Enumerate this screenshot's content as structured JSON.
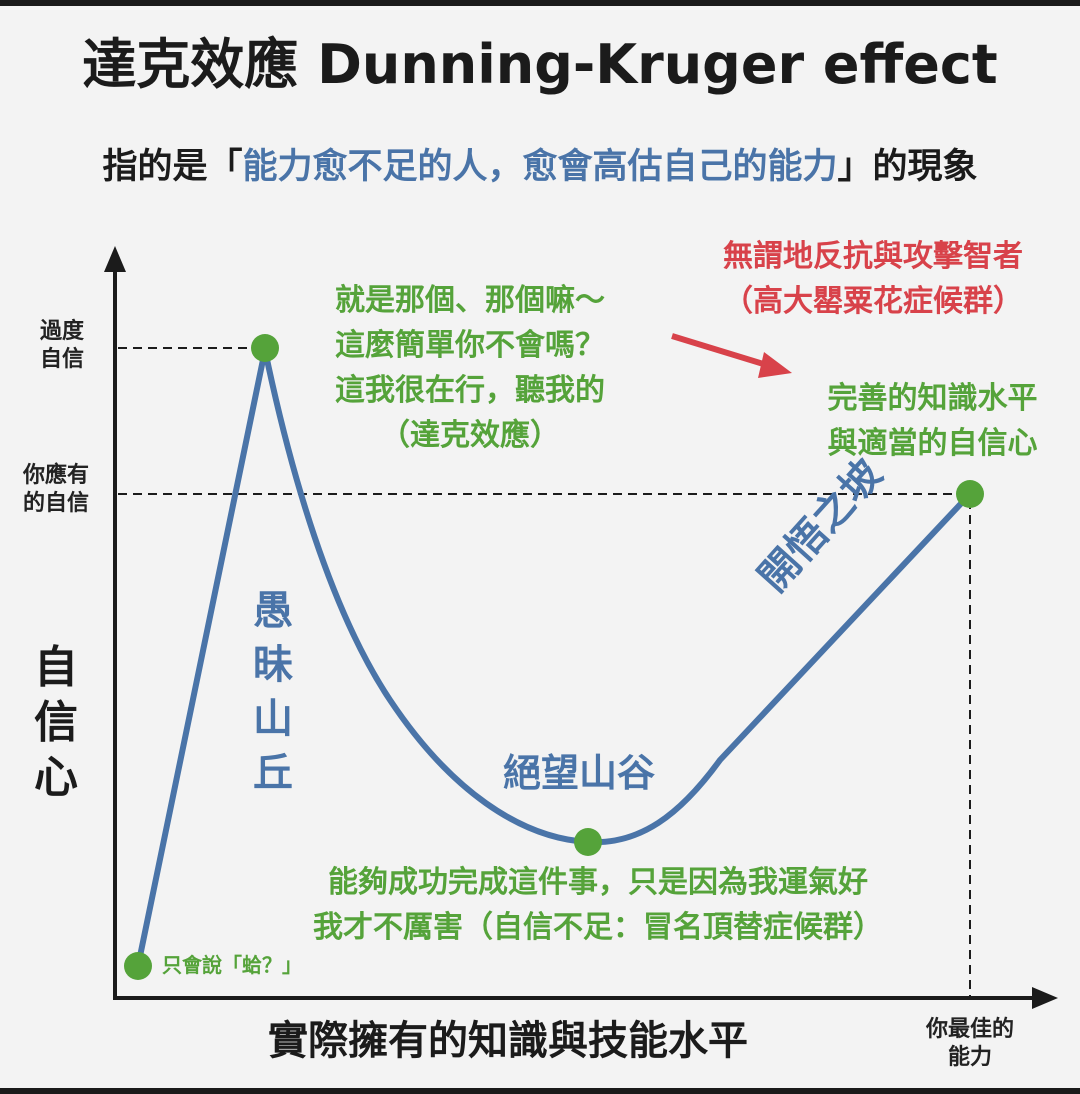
{
  "header": {
    "title": "達克效應 Dunning-Kruger effect",
    "subtitle_prefix": "指的是「",
    "subtitle_highlight": "能力愈不足的人，愈會高估自己的能力",
    "subtitle_suffix": "」的現象"
  },
  "axes": {
    "y_axis_label": "自信心",
    "x_axis_label": "實際擁有的知識與技能水平",
    "y_tick_overconfidence": "過度自信",
    "y_tick_appropriate": "你應有的自信",
    "x_tick_best_ability": "你最佳的能力"
  },
  "regions": {
    "peak_name": "愚昧山丘",
    "valley_name": "絕望山谷",
    "slope_name": "開悟之坡"
  },
  "annotations": {
    "start_point": "只會說「蛤？」",
    "peak_quote": [
      "就是那個、那個嘛～",
      "這麼簡單你不會嗎？",
      "這我很在行，聽我的",
      "（達克效應）"
    ],
    "valley_quote": [
      "能夠成功完成這件事，只是因為我運氣好",
      "我才不厲害（自信不足：冒名頂替症候群）"
    ],
    "end_point": [
      "完善的知識水平",
      "與適當的自信心"
    ],
    "red_note": [
      "無謂地反抗與攻擊智者",
      "（高大罌粟花症候群）"
    ]
  },
  "colors": {
    "curve": "#4a74a8",
    "points": "#55a33a",
    "green_text": "#55a33a",
    "red_text": "#d8424a",
    "axis": "#1b1b1b"
  }
}
